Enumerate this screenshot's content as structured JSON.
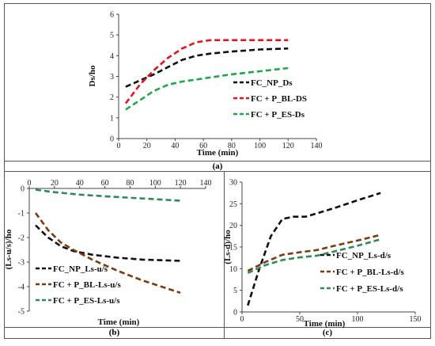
{
  "captions": {
    "a": "(a)",
    "b": "(b)",
    "c": "(c)"
  },
  "chart_data": [
    {
      "id": "a",
      "type": "line",
      "title": "",
      "xlabel": "Time (min)",
      "ylabel": "Ds/ho",
      "xlim": [
        0,
        140
      ],
      "ylim": [
        0,
        6
      ],
      "xticks": [
        "0",
        "20",
        "40",
        "60",
        "80",
        "100",
        "120",
        "140"
      ],
      "yticks": [
        "0",
        "1",
        "2",
        "3",
        "4",
        "5",
        "6"
      ],
      "legend_position": "right",
      "series": [
        {
          "name": "FC_NP_Ds",
          "color": "#111111",
          "x": [
            5,
            15,
            25,
            35,
            45,
            55,
            65,
            80,
            100,
            120
          ],
          "y": [
            2.5,
            2.8,
            3.1,
            3.45,
            3.8,
            4.0,
            4.1,
            4.2,
            4.3,
            4.35
          ]
        },
        {
          "name": "FC + P_BL-DS",
          "color": "#e3141c",
          "x": [
            5,
            15,
            25,
            35,
            45,
            55,
            65,
            80,
            100,
            120
          ],
          "y": [
            1.7,
            2.6,
            3.3,
            3.9,
            4.35,
            4.65,
            4.75,
            4.75,
            4.75,
            4.75
          ]
        },
        {
          "name": "FC + P_ES-Ds",
          "color": "#1fa84a",
          "x": [
            5,
            15,
            25,
            35,
            45,
            55,
            65,
            80,
            100,
            120
          ],
          "y": [
            1.4,
            1.85,
            2.3,
            2.6,
            2.75,
            2.85,
            2.95,
            3.1,
            3.25,
            3.4
          ]
        }
      ]
    },
    {
      "id": "b",
      "type": "line",
      "title": "",
      "xlabel": "Time (min)",
      "ylabel": "(Ls-u/s)/ho",
      "xlim": [
        0,
        140
      ],
      "ylim": [
        -5,
        0
      ],
      "xticks": [
        "0",
        "20",
        "40",
        "60",
        "80",
        "100",
        "120",
        "140"
      ],
      "yticks": [
        "0",
        "-1",
        "-2",
        "-3",
        "-4",
        "-5"
      ],
      "legend_position": "bottom-left",
      "series": [
        {
          "name": "FC_NP_Ls-u/s",
          "color": "#111111",
          "x": [
            5,
            15,
            25,
            35,
            50,
            70,
            90,
            120
          ],
          "y": [
            -1.5,
            -2.0,
            -2.35,
            -2.55,
            -2.7,
            -2.82,
            -2.9,
            -2.95
          ]
        },
        {
          "name": "FC + P_BL-Ls-u/s",
          "color": "#7b3a10",
          "x": [
            5,
            15,
            25,
            35,
            50,
            70,
            90,
            120
          ],
          "y": [
            -1.0,
            -1.7,
            -2.2,
            -2.5,
            -2.9,
            -3.35,
            -3.75,
            -4.25
          ]
        },
        {
          "name": "FC + P_ES-Ls-u/s",
          "color": "#2e8b57",
          "x": [
            5,
            20,
            40,
            60,
            80,
            100,
            120
          ],
          "y": [
            -0.05,
            -0.15,
            -0.25,
            -0.32,
            -0.38,
            -0.44,
            -0.5
          ]
        }
      ]
    },
    {
      "id": "c",
      "type": "line",
      "title": "",
      "xlabel": "Time (min)",
      "ylabel": "(Ls-d)/ho",
      "xlim": [
        0,
        150
      ],
      "ylim": [
        0,
        30
      ],
      "xticks": [
        "0",
        "50",
        "100",
        "150"
      ],
      "yticks": [
        "0",
        "5",
        "10",
        "15",
        "20",
        "25",
        "30"
      ],
      "legend_position": "right",
      "series": [
        {
          "name": "FC_NP_Ls-d/s",
          "color": "#111111",
          "x": [
            5,
            15,
            25,
            35,
            45,
            55,
            65,
            80,
            100,
            120
          ],
          "y": [
            1.5,
            10.0,
            17.5,
            21.5,
            22.0,
            22.0,
            22.8,
            24.0,
            25.8,
            27.5
          ]
        },
        {
          "name": "FC + P_BL-Ls-d/s",
          "color": "#7b3a10",
          "x": [
            5,
            20,
            35,
            50,
            65,
            80,
            100,
            120
          ],
          "y": [
            9.5,
            11.5,
            13.2,
            13.8,
            14.3,
            15.3,
            16.5,
            17.8
          ]
        },
        {
          "name": "FC + P_ES-Ls-d/s",
          "color": "#2e8b57",
          "x": [
            5,
            20,
            35,
            50,
            65,
            80,
            100,
            120
          ],
          "y": [
            9.0,
            10.8,
            12.0,
            12.6,
            13.0,
            14.0,
            15.3,
            16.8
          ]
        }
      ]
    }
  ]
}
